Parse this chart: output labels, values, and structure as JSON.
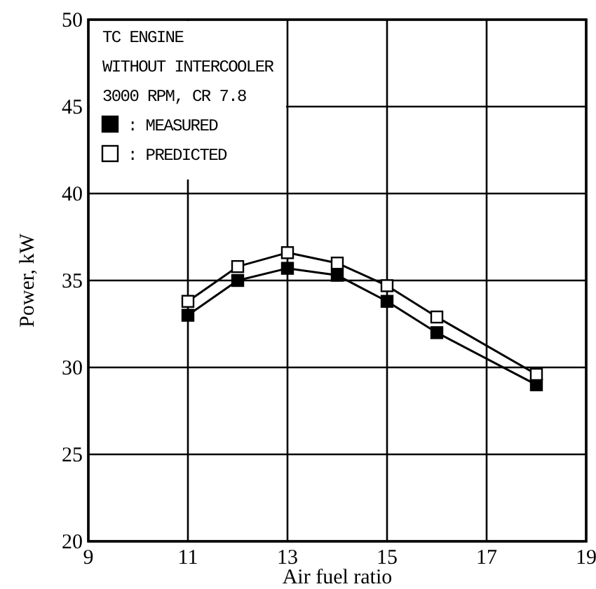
{
  "chart_data": {
    "type": "line",
    "xlabel": "Air fuel ratio",
    "ylabel": "Power, kW",
    "annotations": [
      "TC ENGINE",
      "WITHOUT INTERCOOLER",
      "3000 RPM, CR 7.8"
    ],
    "x": [
      11,
      12,
      13,
      14,
      15,
      16,
      18
    ],
    "series": [
      {
        "name": ": MEASURED",
        "color": "#000000",
        "values": [
          33.0,
          35.0,
          35.7,
          35.3,
          33.8,
          32.0,
          29.0
        ]
      },
      {
        "name": ": PREDICTED",
        "color": "#ffffff",
        "values": [
          33.8,
          35.8,
          36.6,
          36.0,
          34.7,
          32.9,
          29.6
        ]
      }
    ],
    "xlim": [
      9,
      19
    ],
    "xticks": [
      9,
      11,
      13,
      15,
      17,
      19
    ],
    "ylim": [
      20,
      50
    ],
    "yticks": [
      20,
      25,
      30,
      35,
      40,
      45,
      50
    ],
    "grid": true,
    "legend": "top left",
    "marker": "square",
    "line_style": "solid"
  }
}
